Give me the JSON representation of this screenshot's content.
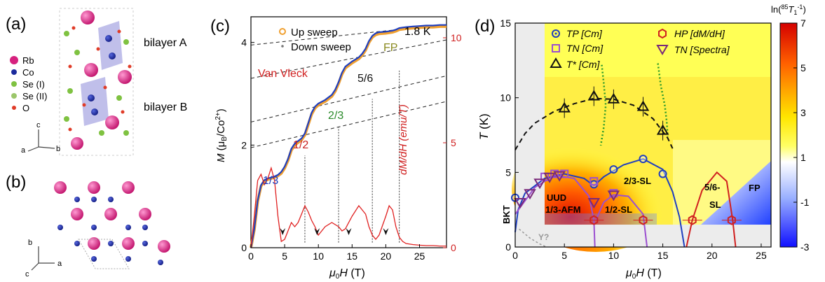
{
  "panel_a": {
    "label": "(a)",
    "bilayer_a": "bilayer A",
    "bilayer_b": "bilayer B",
    "legend": [
      {
        "symbol": "Rb",
        "color": "#d6217e"
      },
      {
        "symbol": "Co",
        "color": "#1b2a9c"
      },
      {
        "symbol": "Se (I)",
        "color": "#7fc241"
      },
      {
        "symbol": "Se (II)",
        "color": "#9bc66a"
      },
      {
        "symbol": "O",
        "color": "#e03c28"
      }
    ],
    "axes": {
      "c": "c",
      "a": "a",
      "b": "b"
    }
  },
  "panel_b": {
    "label": "(b)",
    "axes": {
      "b": "b",
      "c": "c",
      "a": "a"
    }
  },
  "panel_c": {
    "label": "(c)",
    "legend_up": "Up sweep",
    "legend_down": "Down sweep",
    "temperature": "1.8 K",
    "ylabel_left": "M (μB/Co2+)",
    "ylabel_right": "dM/dH (emu/T)",
    "xlabel": "μ0H (T)",
    "van_vleck": "Van Vleck",
    "plateaus": [
      {
        "label": "1/3",
        "color": "#1f3fbf"
      },
      {
        "label": "1/2",
        "color": "#c81e1e"
      },
      {
        "label": "2/3",
        "color": "#2a8a2a"
      },
      {
        "label": "5/6",
        "color": "#111111"
      },
      {
        "label": "FP",
        "color": "#8a8a20"
      }
    ]
  },
  "panel_d": {
    "label": "(d)",
    "xlabel": "μ0H (T)",
    "ylabel": "T (K)",
    "colorbar_title": "ln(85T1-1)",
    "colorbar_ticks": [
      "7",
      "5",
      "3",
      "1",
      "-1",
      "-3"
    ],
    "legend": [
      {
        "label": "TP [Cm]",
        "color": "#1f3fbf"
      },
      {
        "label": "TN [Cm]",
        "color": "#9b4fd0"
      },
      {
        "label": "T* [Cm]",
        "color": "#111111"
      },
      {
        "label": "HP [dM/dH]",
        "color": "#d02020"
      },
      {
        "label": "TN [Spectra]",
        "color": "#7a2a7a"
      }
    ],
    "regions": [
      "UUD",
      "1/3-AFM",
      "2/3-SL",
      "1/2-SL",
      "5/6-",
      "SL",
      "FP",
      "BKT",
      "Y?"
    ]
  },
  "chart_data": [
    {
      "type": "line",
      "title": "(c)",
      "xlabel": "μ0H (T)",
      "ylabel": "M (μB/Co2+)",
      "y2label": "dM/dH (emu/T)",
      "xlim": [
        0,
        29
      ],
      "ylim": [
        0,
        4.5
      ],
      "y2lim": [
        0,
        11
      ],
      "x_ticks": [
        0,
        5,
        10,
        15,
        20,
        25
      ],
      "y_ticks": [
        0,
        2,
        4
      ],
      "y2_ticks": [
        0,
        5,
        10
      ],
      "series": [
        {
          "name": "Up sweep",
          "color": "#f0a030",
          "x": [
            0,
            0.5,
            1,
            1.5,
            2,
            2.5,
            3,
            3.5,
            4,
            4.5,
            5,
            5.5,
            6,
            6.5,
            7,
            7.5,
            8,
            8.5,
            9,
            9.5,
            10,
            11,
            12,
            12.5,
            13,
            13.5,
            14,
            15,
            16,
            16.5,
            17,
            17.5,
            18,
            18.5,
            19,
            20,
            21,
            21.5,
            22,
            22.5,
            23,
            24,
            25,
            26,
            27,
            28,
            29
          ],
          "y": [
            0,
            0.35,
            0.9,
            1.2,
            1.3,
            1.33,
            1.35,
            1.37,
            1.4,
            1.45,
            1.55,
            1.7,
            1.9,
            2.0,
            2.05,
            2.1,
            2.2,
            2.4,
            2.6,
            2.72,
            2.78,
            2.85,
            2.95,
            3.05,
            3.2,
            3.38,
            3.5,
            3.6,
            3.68,
            3.75,
            3.85,
            4.0,
            4.1,
            4.15,
            4.17,
            4.18,
            4.2,
            4.22,
            4.25,
            4.26,
            4.27,
            4.28,
            4.29,
            4.3,
            4.3,
            4.31,
            4.31
          ]
        },
        {
          "name": "Down sweep",
          "color": "#1f3fbf",
          "x": [
            0,
            0.5,
            1,
            1.5,
            2,
            2.5,
            3,
            3.5,
            4,
            4.5,
            5,
            5.5,
            6,
            6.5,
            7,
            7.5,
            8,
            8.5,
            9,
            9.5,
            10,
            11,
            12,
            12.5,
            13,
            13.5,
            14,
            15,
            16,
            16.5,
            17,
            17.5,
            18,
            18.5,
            19,
            20,
            21,
            21.5,
            22,
            22.5,
            23,
            24,
            25,
            26,
            27,
            28,
            29
          ],
          "y": [
            0,
            0.37,
            0.92,
            1.22,
            1.32,
            1.35,
            1.37,
            1.39,
            1.42,
            1.48,
            1.58,
            1.73,
            1.93,
            2.03,
            2.08,
            2.13,
            2.23,
            2.43,
            2.63,
            2.75,
            2.81,
            2.88,
            2.98,
            3.08,
            3.23,
            3.41,
            3.53,
            3.63,
            3.71,
            3.78,
            3.88,
            4.03,
            4.13,
            4.18,
            4.2,
            4.21,
            4.23,
            4.25,
            4.28,
            4.29,
            4.3,
            4.31,
            4.32,
            4.33,
            4.33,
            4.34,
            4.34
          ]
        },
        {
          "name": "dM/dH",
          "color": "#e02020",
          "axis": "y2",
          "x": [
            0,
            0.5,
            1,
            1.5,
            2,
            2.5,
            3,
            3.5,
            4,
            4.5,
            5,
            5.5,
            6,
            6.5,
            7,
            7.5,
            8,
            8.5,
            9,
            9.5,
            10,
            11,
            12,
            13,
            13.5,
            14,
            15,
            16,
            17,
            17.5,
            18,
            18.5,
            19,
            20,
            20.5,
            21,
            21.5,
            22,
            22.5,
            23,
            24,
            25,
            26,
            27,
            28,
            29
          ],
          "y": [
            0,
            1.5,
            3.2,
            3.5,
            3.0,
            3.3,
            3.8,
            3.2,
            1.5,
            0.3,
            0.4,
            0.8,
            1.2,
            1.0,
            1.2,
            1.6,
            2.0,
            1.7,
            1.3,
            1.0,
            0.6,
            1.0,
            1.2,
            1.0,
            0.8,
            0.9,
            1.5,
            2.0,
            1.6,
            1.0,
            0.6,
            0.4,
            0.6,
            1.5,
            2.0,
            1.8,
            1.0,
            0.5,
            0.3,
            0.2,
            0.15,
            0.12,
            0.1,
            0.1,
            0.08,
            0.08
          ]
        }
      ],
      "plateau_guides_x": [
        8,
        13,
        18,
        22
      ],
      "arrows_x": [
        4.7,
        9.8,
        14.5,
        20
      ]
    },
    {
      "type": "scatter",
      "title": "(d)",
      "xlabel": "μ0H (T)",
      "ylabel": "T (K)",
      "xlim": [
        0,
        26
      ],
      "ylim": [
        0,
        15
      ],
      "x_ticks": [
        0,
        5,
        10,
        15,
        20,
        25
      ],
      "y_ticks": [
        0,
        5,
        10,
        15
      ],
      "series": [
        {
          "name": "TP [Cm]",
          "x": [
            0,
            8,
            10,
            13,
            15
          ],
          "y": [
            3.3,
            4.2,
            5.2,
            5.9,
            4.9
          ]
        },
        {
          "name": "TN [Cm]",
          "x": [
            3,
            4,
            5,
            8,
            10
          ],
          "y": [
            4.7,
            4.9,
            4.9,
            4.4,
            3.6
          ]
        },
        {
          "name": "T* [Cm]",
          "x": [
            5,
            8,
            10,
            13,
            15
          ],
          "y": [
            9.3,
            10.1,
            9.9,
            9.4,
            7.8
          ]
        },
        {
          "name": "HP [dM/dH]",
          "x": [
            8,
            13,
            18,
            22
          ],
          "y": [
            1.8,
            1.8,
            1.8,
            1.8
          ]
        },
        {
          "name": "TN [Spectra]",
          "x": [
            0.5,
            1.5,
            2.5,
            3.5,
            4.5,
            8,
            10
          ],
          "y": [
            3.0,
            3.6,
            4.3,
            4.7,
            4.8,
            3.0,
            3.5
          ]
        }
      ],
      "colorbar": {
        "min": -3,
        "max": 7,
        "ticks": [
          7,
          5,
          3,
          1,
          -1,
          -3
        ]
      }
    }
  ]
}
